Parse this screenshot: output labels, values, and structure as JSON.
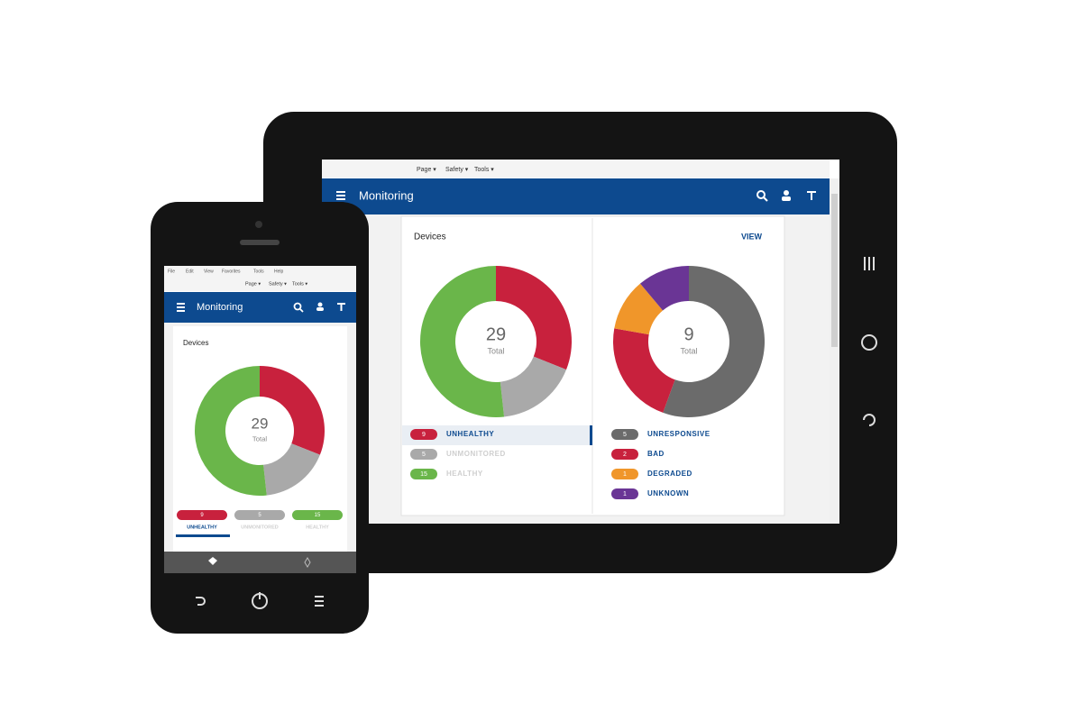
{
  "tablet": {
    "toolbar": [
      "Page ▾",
      "Safety ▾",
      "Tools ▾"
    ],
    "app_title": "Monitoring",
    "panel_title": "Devices",
    "view_link": "VIEW",
    "health_chart": {
      "total": 29,
      "total_label": "Total",
      "segments": [
        {
          "label": "UNHEALTHY",
          "value": 9,
          "color": "#c8213d"
        },
        {
          "label": "UNMONITORED",
          "value": 5,
          "color": "#a9a9a9"
        },
        {
          "label": "HEALTHY",
          "value": 15,
          "color": "#6ab64a"
        }
      ]
    },
    "status_chart": {
      "total": 9,
      "total_label": "Total",
      "segments": [
        {
          "label": "UNRESPONSIVE",
          "value": 5,
          "color": "#6b6b6b"
        },
        {
          "label": "BAD",
          "value": 2,
          "color": "#c8213d"
        },
        {
          "label": "DEGRADED",
          "value": 1,
          "color": "#f0962a"
        },
        {
          "label": "UNKNOWN",
          "value": 1,
          "color": "#6a3595"
        }
      ]
    }
  },
  "phone": {
    "menu": [
      "File",
      "Edit",
      "View",
      "Favorites",
      "Tools",
      "Help"
    ],
    "toolbar": [
      "Page ▾",
      "Safety ▾",
      "Tools ▾"
    ],
    "app_title": "Monitoring",
    "panel_title": "Devices",
    "health_chart": {
      "total": 29,
      "total_label": "Total",
      "segments": [
        {
          "label": "UNHEALTHY",
          "value": 9,
          "color": "#c8213d"
        },
        {
          "label": "UNMONITORED",
          "value": 5,
          "color": "#a9a9a9"
        },
        {
          "label": "HEALTHY",
          "value": 15,
          "color": "#6ab64a"
        }
      ]
    }
  }
}
